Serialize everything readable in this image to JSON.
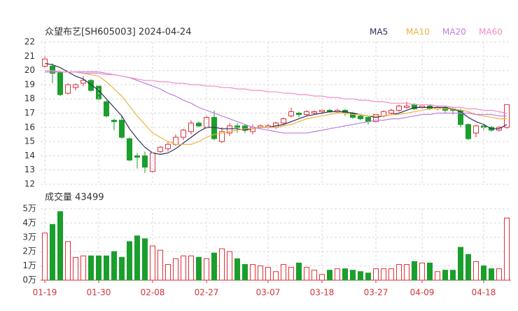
{
  "chart_data": [
    {
      "type": "candlestick",
      "title": "众望布艺[SH605003] 2024-04-24",
      "up_color": "#e0303a",
      "down_color": "#1a9e2c",
      "open": [
        20.3,
        20.3,
        19.9,
        18.4,
        18.8,
        19.1,
        19.3,
        18.9,
        17.8,
        16.5,
        16.5,
        15.2,
        14.0,
        14.0,
        12.9,
        14.3,
        14.5,
        14.8,
        15.3,
        15.7,
        16.3,
        16.0,
        16.7,
        15.0,
        15.6,
        16.1,
        16.1,
        15.7,
        16.0,
        16.0,
        16.0,
        16.3,
        16.8,
        17.0,
        16.9,
        17.0,
        17.1,
        17.2,
        17.1,
        17.2,
        17.0,
        16.8,
        16.7,
        16.4,
        16.8,
        17.0,
        17.2,
        17.4,
        17.6,
        17.4,
        17.5,
        17.3,
        17.4,
        17.3,
        17.2,
        16.2,
        15.6,
        16.1,
        16.0,
        15.8,
        16.0
      ],
      "high": [
        21.0,
        20.5,
        20.0,
        19.1,
        19.1,
        19.6,
        19.4,
        19.0,
        17.9,
        16.6,
        16.8,
        15.3,
        14.2,
        14.3,
        14.3,
        14.7,
        15.0,
        15.5,
        15.9,
        16.5,
        16.4,
        16.8,
        17.2,
        16.0,
        16.3,
        16.3,
        16.2,
        16.2,
        16.2,
        16.3,
        16.4,
        16.7,
        17.4,
        17.1,
        17.2,
        17.2,
        17.3,
        17.3,
        17.3,
        17.3,
        17.1,
        16.9,
        16.8,
        17.0,
        17.2,
        17.3,
        17.6,
        17.8,
        17.7,
        17.6,
        17.6,
        17.5,
        17.5,
        17.4,
        17.3,
        16.3,
        16.2,
        16.3,
        16.1,
        16.1,
        17.6
      ],
      "low": [
        20.1,
        19.1,
        18.2,
        18.3,
        18.6,
        18.9,
        18.5,
        17.9,
        16.7,
        15.8,
        15.2,
        13.6,
        13.1,
        12.8,
        12.8,
        14.2,
        14.3,
        14.7,
        15.1,
        15.5,
        16.0,
        15.9,
        15.1,
        14.9,
        15.4,
        15.6,
        15.6,
        15.5,
        15.9,
        15.9,
        15.9,
        16.2,
        16.7,
        16.7,
        16.8,
        16.9,
        17.0,
        17.0,
        17.0,
        16.8,
        16.6,
        16.5,
        16.2,
        16.3,
        16.7,
        16.9,
        17.1,
        17.3,
        17.2,
        17.3,
        17.2,
        17.2,
        17.0,
        16.9,
        16.0,
        15.1,
        15.3,
        15.8,
        15.7,
        15.7,
        15.9
      ],
      "close": [
        20.8,
        19.8,
        18.3,
        19.0,
        19.0,
        19.3,
        18.6,
        18.0,
        16.8,
        16.4,
        15.3,
        13.7,
        13.9,
        13.2,
        14.2,
        14.6,
        14.8,
        15.3,
        15.8,
        16.3,
        16.1,
        16.7,
        15.2,
        15.7,
        16.1,
        16.0,
        15.8,
        16.0,
        16.1,
        16.1,
        16.3,
        16.6,
        17.1,
        16.9,
        17.1,
        17.1,
        17.2,
        17.1,
        17.2,
        17.0,
        16.7,
        16.6,
        16.4,
        16.9,
        17.1,
        17.2,
        17.5,
        17.5,
        17.3,
        17.5,
        17.3,
        17.4,
        17.2,
        17.2,
        16.2,
        15.2,
        16.1,
        16.0,
        15.8,
        16.0,
        17.6
      ],
      "ylim": [
        12,
        22
      ],
      "yticks": [
        12,
        13,
        14,
        15,
        16,
        17,
        18,
        19,
        20,
        21,
        22
      ],
      "grid": true,
      "series": [
        {
          "name": "MA5",
          "color": "#2e2e5e",
          "values": [
            20.5,
            20.4,
            20.2,
            19.9,
            19.6,
            19.4,
            19.0,
            18.6,
            18.0,
            17.4,
            16.8,
            15.9,
            15.2,
            14.6,
            14.2,
            14.1,
            14.2,
            14.5,
            14.9,
            15.3,
            15.7,
            16.0,
            16.0,
            15.9,
            15.9,
            15.9,
            15.8,
            15.9,
            16.0,
            16.0,
            16.1,
            16.2,
            16.4,
            16.6,
            16.8,
            16.9,
            17.0,
            17.1,
            17.1,
            17.1,
            17.0,
            16.9,
            16.8,
            16.7,
            16.8,
            16.9,
            17.0,
            17.2,
            17.4,
            17.4,
            17.4,
            17.4,
            17.4,
            17.3,
            17.1,
            16.7,
            16.4,
            16.2,
            15.9,
            15.9,
            16.2
          ]
        },
        {
          "name": "MA10",
          "color": "#f2b13c",
          "values": [
            19.9,
            19.9,
            19.9,
            19.9,
            19.9,
            19.8,
            19.7,
            19.6,
            19.2,
            18.7,
            18.2,
            17.5,
            16.8,
            16.2,
            15.6,
            15.3,
            15.0,
            14.8,
            14.8,
            14.8,
            15.0,
            15.3,
            15.5,
            15.6,
            15.7,
            15.8,
            15.9,
            15.9,
            16.0,
            16.0,
            16.0,
            16.1,
            16.2,
            16.4,
            16.6,
            16.7,
            16.8,
            16.9,
            17.0,
            17.0,
            16.9,
            16.9,
            16.8,
            16.8,
            16.8,
            16.9,
            16.9,
            17.0,
            17.1,
            17.2,
            17.3,
            17.3,
            17.3,
            17.3,
            17.2,
            17.1,
            16.9,
            16.8,
            16.7,
            16.6,
            16.6
          ]
        },
        {
          "name": "MA20",
          "color": "#c07ee0",
          "values": [
            19.9,
            19.9,
            19.9,
            19.9,
            19.9,
            19.9,
            19.9,
            19.9,
            19.8,
            19.7,
            19.6,
            19.5,
            19.3,
            19.1,
            18.9,
            18.7,
            18.4,
            18.2,
            17.9,
            17.7,
            17.4,
            17.2,
            17.0,
            16.8,
            16.6,
            16.4,
            16.2,
            16.0,
            15.9,
            15.8,
            15.7,
            15.6,
            15.6,
            15.6,
            15.6,
            15.7,
            15.8,
            15.9,
            16.0,
            16.1,
            16.2,
            16.3,
            16.4,
            16.5,
            16.5,
            16.6,
            16.6,
            16.7,
            16.8,
            16.9,
            16.9,
            17.0,
            17.0,
            17.0,
            17.0,
            17.0,
            16.9,
            16.9,
            16.9,
            16.8,
            16.8
          ]
        },
        {
          "name": "MA60",
          "color": "#f28cc4",
          "values": [
            20.0,
            20.0,
            19.9,
            19.9,
            19.9,
            19.8,
            19.8,
            19.8,
            19.7,
            19.7,
            19.6,
            19.5,
            19.4,
            19.3,
            19.3,
            19.2,
            19.2,
            19.1,
            19.1,
            19.0,
            19.0,
            18.9,
            18.9,
            18.8,
            18.8,
            18.7,
            18.7,
            18.6,
            18.6,
            18.5,
            18.5,
            18.4,
            18.4,
            18.3,
            18.3,
            18.2,
            18.2,
            18.1,
            18.1,
            18.0,
            18.0,
            17.9,
            17.9,
            17.8,
            17.8,
            17.7,
            17.7,
            17.7,
            17.6,
            17.6,
            17.6,
            17.5,
            17.5,
            17.4,
            17.4,
            17.3,
            17.3,
            17.2,
            17.2,
            17.1,
            17.0
          ]
        }
      ]
    },
    {
      "type": "volume",
      "title": "成交量 43499",
      "categories": [
        "01-19",
        null,
        null,
        null,
        null,
        null,
        null,
        "01-30",
        null,
        null,
        null,
        null,
        null,
        null,
        "02-08",
        null,
        null,
        null,
        null,
        null,
        null,
        "02-27",
        null,
        null,
        null,
        null,
        null,
        null,
        null,
        "03-07",
        null,
        null,
        null,
        null,
        null,
        null,
        "03-18",
        null,
        null,
        null,
        null,
        null,
        null,
        "03-27",
        null,
        null,
        null,
        null,
        null,
        "04-09",
        null,
        null,
        null,
        null,
        null,
        null,
        null,
        "04-18",
        null,
        null,
        null
      ],
      "values": [
        3.3,
        3.9,
        4.8,
        2.7,
        1.6,
        1.7,
        1.7,
        1.7,
        1.7,
        2.0,
        1.6,
        2.7,
        3.1,
        2.9,
        2.4,
        2.1,
        1.1,
        1.5,
        1.7,
        1.7,
        1.6,
        1.5,
        1.9,
        2.2,
        2.0,
        1.5,
        1.1,
        1.1,
        1.0,
        0.9,
        0.6,
        1.1,
        0.9,
        1.2,
        0.9,
        0.7,
        0.4,
        0.7,
        0.8,
        0.8,
        0.7,
        0.6,
        0.5,
        0.8,
        0.8,
        0.8,
        1.1,
        1.1,
        1.3,
        1.2,
        1.2,
        0.6,
        0.7,
        0.7,
        2.3,
        1.8,
        1.3,
        1.0,
        0.8,
        0.8,
        4.35
      ],
      "ylim": [
        0,
        5
      ],
      "yticks": [
        {
          "value": 0,
          "label": "0万"
        },
        {
          "value": 1,
          "label": "1万"
        },
        {
          "value": 2,
          "label": "2万"
        },
        {
          "value": 3,
          "label": "3万"
        },
        {
          "value": 4,
          "label": "4万"
        },
        {
          "value": 5,
          "label": "5万"
        }
      ],
      "grid": true,
      "tick_color": "#d0343c"
    }
  ]
}
